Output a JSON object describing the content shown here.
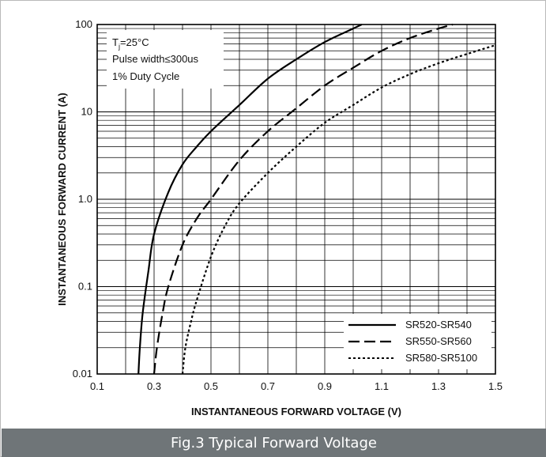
{
  "caption": "Fig.3 Typical Forward Voltage",
  "conditions": {
    "line1_main": "T",
    "line1_sub": "j",
    "line1_rest": "=25°C",
    "line2": "Pulse width≤300us",
    "line3": "1% Duty Cycle"
  },
  "chart_data": {
    "type": "line",
    "title": "",
    "xlabel": "INSTANTANEOUS FORWARD VOLTAGE (V)",
    "ylabel": "INSTANTANEOUS FORWARD CURRENT (A)",
    "xlim": [
      0.1,
      1.5
    ],
    "ylim": [
      0.01,
      100
    ],
    "yscale": "log",
    "grid": true,
    "legend_position": "bottom-right",
    "x_ticks": [
      "0.1",
      "0.3",
      "0.5",
      "0.7",
      "0.9",
      "1.1",
      "1.3",
      "1.5"
    ],
    "y_ticks": [
      "0.01",
      "0.1",
      "1.0",
      "10",
      "100"
    ],
    "series": [
      {
        "name": "SR520-SR540",
        "style": "solid",
        "x": [
          0.245,
          0.25,
          0.26,
          0.28,
          0.3,
          0.35,
          0.4,
          0.45,
          0.5,
          0.6,
          0.7,
          0.8,
          0.9,
          1.0,
          1.03
        ],
        "y": [
          0.01,
          0.02,
          0.05,
          0.15,
          0.4,
          1.2,
          2.5,
          4.0,
          6.0,
          12,
          24,
          40,
          63,
          90,
          100
        ]
      },
      {
        "name": "SR550-SR560",
        "style": "dashed",
        "x": [
          0.3,
          0.31,
          0.33,
          0.35,
          0.4,
          0.45,
          0.5,
          0.6,
          0.7,
          0.8,
          0.9,
          1.0,
          1.1,
          1.2,
          1.3,
          1.35
        ],
        "y": [
          0.01,
          0.02,
          0.05,
          0.1,
          0.3,
          0.6,
          1.0,
          2.8,
          6.0,
          11,
          20,
          32,
          50,
          70,
          90,
          100
        ]
      },
      {
        "name": "SR580-SR5100",
        "style": "dotted",
        "x": [
          0.4,
          0.41,
          0.43,
          0.45,
          0.5,
          0.55,
          0.6,
          0.7,
          0.8,
          0.9,
          1.0,
          1.1,
          1.2,
          1.3,
          1.4,
          1.5
        ],
        "y": [
          0.01,
          0.02,
          0.04,
          0.07,
          0.22,
          0.5,
          0.9,
          2.0,
          4.0,
          7.5,
          12,
          19,
          27,
          36,
          46,
          58
        ]
      }
    ]
  }
}
